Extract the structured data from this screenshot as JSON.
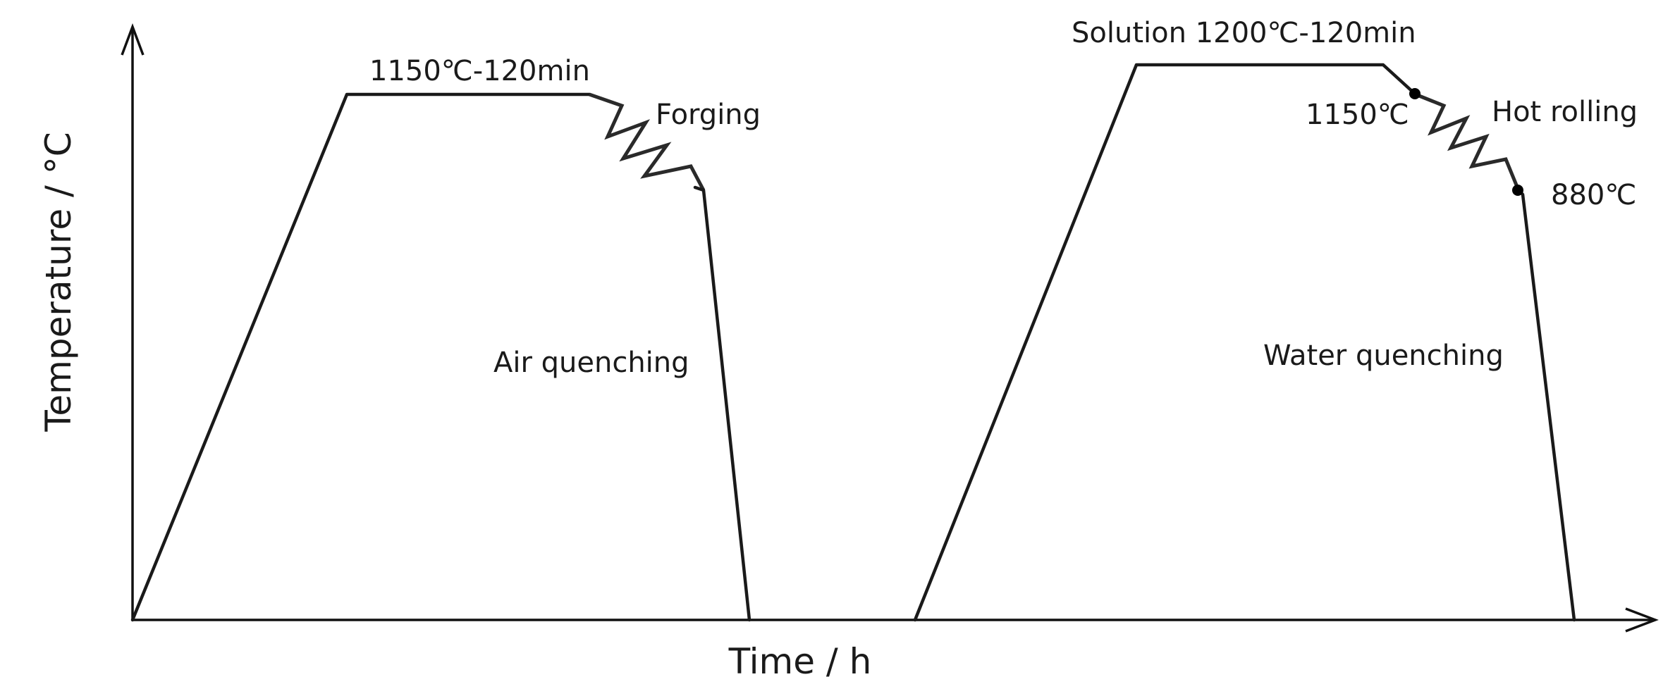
{
  "axes": {
    "x_label": "Time / h",
    "y_label": "Temperature / °C"
  },
  "process_1": {
    "hold_label": "1150℃-120min",
    "deform_label": "Forging",
    "cooling_label": "Air quenching"
  },
  "process_2": {
    "hold_label": "Solution 1200℃-120min",
    "start_temp_label": "1150℃",
    "deform_label": "Hot rolling",
    "end_temp_label": "880℃",
    "cooling_label": "Water quenching"
  }
}
